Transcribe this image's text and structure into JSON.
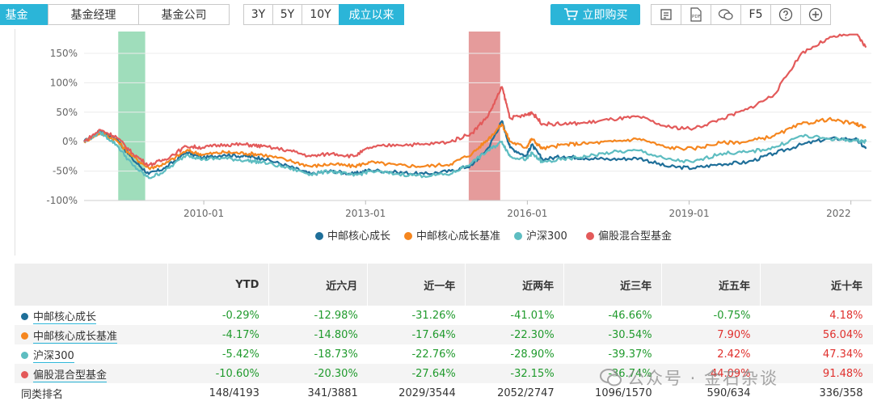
{
  "tabs": {
    "fund": "基金",
    "manager": "基金经理",
    "company": "基金公司"
  },
  "ranges": [
    "3Y",
    "5Y",
    "10Y",
    "成立以来"
  ],
  "active_range": "成立以来",
  "buy_label": "立即购买",
  "tools": {
    "f5": "F5",
    "pdf": "PDF"
  },
  "colors": {
    "accent": "#2bb5d8",
    "positive": "#e0302d",
    "negative": "#1f9a2c"
  },
  "chart_data": {
    "type": "line",
    "x_ticks": [
      "2010-01",
      "2013-01",
      "2016-01",
      "2019-01",
      "2022"
    ],
    "y_ticks": [
      "-100%",
      "-50%",
      "0%",
      "50%",
      "100%",
      "150%"
    ],
    "ylim": [
      -100,
      180
    ],
    "x_unit": "years since 2007-09",
    "highlight_bands": [
      {
        "color": "#7fd1a4",
        "from": "2008-05",
        "to": "2008-11"
      },
      {
        "color": "#dc7a7a",
        "from": "2014-11",
        "to": "2015-06"
      }
    ],
    "series": [
      {
        "name": "中邮核心成长",
        "color": "#1f6f99",
        "points": [
          [
            2007.7,
            0
          ],
          [
            2008.0,
            18
          ],
          [
            2008.3,
            5
          ],
          [
            2008.6,
            -30
          ],
          [
            2008.9,
            -55
          ],
          [
            2009.2,
            -45
          ],
          [
            2009.6,
            -18
          ],
          [
            2009.9,
            -28
          ],
          [
            2010.3,
            -22
          ],
          [
            2010.7,
            -25
          ],
          [
            2011.0,
            -28
          ],
          [
            2011.5,
            -42
          ],
          [
            2011.9,
            -55
          ],
          [
            2012.3,
            -50
          ],
          [
            2012.7,
            -55
          ],
          [
            2013.0,
            -48
          ],
          [
            2013.5,
            -52
          ],
          [
            2014.0,
            -55
          ],
          [
            2014.5,
            -50
          ],
          [
            2014.9,
            -40
          ],
          [
            2015.2,
            -10
          ],
          [
            2015.45,
            35
          ],
          [
            2015.6,
            -10
          ],
          [
            2015.9,
            -25
          ],
          [
            2016.0,
            -5
          ],
          [
            2016.2,
            -30
          ],
          [
            2016.6,
            -25
          ],
          [
            2017.0,
            -28
          ],
          [
            2017.5,
            -30
          ],
          [
            2018.0,
            -28
          ],
          [
            2018.5,
            -42
          ],
          [
            2019.0,
            -45
          ],
          [
            2019.5,
            -38
          ],
          [
            2020.0,
            -35
          ],
          [
            2020.5,
            -20
          ],
          [
            2021.0,
            -5
          ],
          [
            2021.5,
            5
          ],
          [
            2022.0,
            5
          ],
          [
            2022.2,
            -12
          ]
        ]
      },
      {
        "name": "中邮核心成长基准",
        "color": "#f5861f",
        "points": [
          [
            2007.7,
            0
          ],
          [
            2008.0,
            15
          ],
          [
            2008.3,
            2
          ],
          [
            2008.6,
            -25
          ],
          [
            2008.9,
            -45
          ],
          [
            2009.2,
            -38
          ],
          [
            2009.6,
            -15
          ],
          [
            2009.9,
            -22
          ],
          [
            2010.3,
            -18
          ],
          [
            2010.7,
            -20
          ],
          [
            2011.0,
            -22
          ],
          [
            2011.5,
            -32
          ],
          [
            2011.9,
            -42
          ],
          [
            2012.3,
            -38
          ],
          [
            2012.7,
            -42
          ],
          [
            2013.0,
            -35
          ],
          [
            2013.5,
            -40
          ],
          [
            2014.0,
            -42
          ],
          [
            2014.5,
            -38
          ],
          [
            2014.9,
            -20
          ],
          [
            2015.2,
            5
          ],
          [
            2015.45,
            30
          ],
          [
            2015.6,
            0
          ],
          [
            2015.9,
            -10
          ],
          [
            2016.0,
            5
          ],
          [
            2016.2,
            -12
          ],
          [
            2016.6,
            -5
          ],
          [
            2017.0,
            -3
          ],
          [
            2017.5,
            0
          ],
          [
            2018.0,
            5
          ],
          [
            2018.5,
            -10
          ],
          [
            2019.0,
            -12
          ],
          [
            2019.5,
            -2
          ],
          [
            2020.0,
            0
          ],
          [
            2020.5,
            10
          ],
          [
            2021.0,
            30
          ],
          [
            2021.5,
            38
          ],
          [
            2022.0,
            30
          ],
          [
            2022.2,
            25
          ]
        ]
      },
      {
        "name": "沪深300",
        "color": "#5ebdc1",
        "points": [
          [
            2007.7,
            0
          ],
          [
            2008.0,
            16
          ],
          [
            2008.3,
            -5
          ],
          [
            2008.6,
            -40
          ],
          [
            2008.9,
            -62
          ],
          [
            2009.2,
            -50
          ],
          [
            2009.6,
            -22
          ],
          [
            2009.9,
            -30
          ],
          [
            2010.3,
            -28
          ],
          [
            2010.7,
            -32
          ],
          [
            2011.0,
            -35
          ],
          [
            2011.5,
            -45
          ],
          [
            2011.9,
            -55
          ],
          [
            2012.3,
            -50
          ],
          [
            2012.7,
            -58
          ],
          [
            2013.0,
            -50
          ],
          [
            2013.5,
            -55
          ],
          [
            2014.0,
            -58
          ],
          [
            2014.5,
            -55
          ],
          [
            2014.9,
            -35
          ],
          [
            2015.2,
            -15
          ],
          [
            2015.45,
            0
          ],
          [
            2015.6,
            -25
          ],
          [
            2015.9,
            -30
          ],
          [
            2016.0,
            -20
          ],
          [
            2016.2,
            -35
          ],
          [
            2016.6,
            -30
          ],
          [
            2017.0,
            -25
          ],
          [
            2017.5,
            -18
          ],
          [
            2018.0,
            -15
          ],
          [
            2018.5,
            -30
          ],
          [
            2019.0,
            -35
          ],
          [
            2019.5,
            -20
          ],
          [
            2020.0,
            -18
          ],
          [
            2020.5,
            -10
          ],
          [
            2021.0,
            10
          ],
          [
            2021.5,
            5
          ],
          [
            2022.0,
            2
          ],
          [
            2022.2,
            0
          ]
        ]
      },
      {
        "name": "偏股混合型基金",
        "color": "#e35a5a",
        "points": [
          [
            2007.7,
            0
          ],
          [
            2008.0,
            20
          ],
          [
            2008.3,
            8
          ],
          [
            2008.6,
            -20
          ],
          [
            2008.9,
            -40
          ],
          [
            2009.2,
            -30
          ],
          [
            2009.6,
            -8
          ],
          [
            2009.9,
            -10
          ],
          [
            2010.3,
            -5
          ],
          [
            2010.7,
            -5
          ],
          [
            2011.0,
            -8
          ],
          [
            2011.5,
            -15
          ],
          [
            2011.9,
            -25
          ],
          [
            2012.3,
            -20
          ],
          [
            2012.7,
            -25
          ],
          [
            2013.0,
            -10
          ],
          [
            2013.5,
            -5
          ],
          [
            2014.0,
            -5
          ],
          [
            2014.5,
            0
          ],
          [
            2014.9,
            15
          ],
          [
            2015.2,
            45
          ],
          [
            2015.45,
            93
          ],
          [
            2015.6,
            40
          ],
          [
            2015.9,
            45
          ],
          [
            2016.0,
            50
          ],
          [
            2016.2,
            30
          ],
          [
            2016.6,
            30
          ],
          [
            2017.0,
            32
          ],
          [
            2017.5,
            38
          ],
          [
            2018.0,
            42
          ],
          [
            2018.5,
            25
          ],
          [
            2019.0,
            22
          ],
          [
            2019.5,
            38
          ],
          [
            2020.0,
            55
          ],
          [
            2020.5,
            80
          ],
          [
            2021.0,
            150
          ],
          [
            2021.5,
            175
          ],
          [
            2022.0,
            185
          ],
          [
            2022.2,
            160
          ]
        ]
      }
    ]
  },
  "table": {
    "headers": [
      "",
      "YTD",
      "近六月",
      "近一年",
      "近两年",
      "近三年",
      "近五年",
      "近十年"
    ],
    "rows": [
      {
        "name": "中邮核心成长",
        "color": "#1f6f99",
        "cells": [
          "-0.29%",
          "-12.98%",
          "-31.26%",
          "-41.01%",
          "-46.66%",
          "-0.75%",
          "4.18%"
        ]
      },
      {
        "name": "中邮核心成长基准",
        "color": "#f5861f",
        "cells": [
          "-4.17%",
          "-14.80%",
          "-17.64%",
          "-22.30%",
          "-30.54%",
          "7.90%",
          "56.04%"
        ]
      },
      {
        "name": "沪深300",
        "color": "#5ebdc1",
        "cells": [
          "-5.42%",
          "-18.73%",
          "-22.76%",
          "-28.90%",
          "-39.37%",
          "2.42%",
          "47.34%"
        ]
      },
      {
        "name": "偏股混合型基金",
        "color": "#e35a5a",
        "cells": [
          "-10.60%",
          "-20.30%",
          "-27.64%",
          "-32.15%",
          "-36.74%",
          "44.09%",
          "91.48%"
        ]
      }
    ],
    "rank_row": {
      "name": "同类排名",
      "cells": [
        "148/4193",
        "341/3881",
        "2029/3544",
        "2052/2747",
        "1096/1570",
        "590/634",
        "336/358"
      ]
    }
  },
  "watermark": "公众号 · 金石杂谈"
}
